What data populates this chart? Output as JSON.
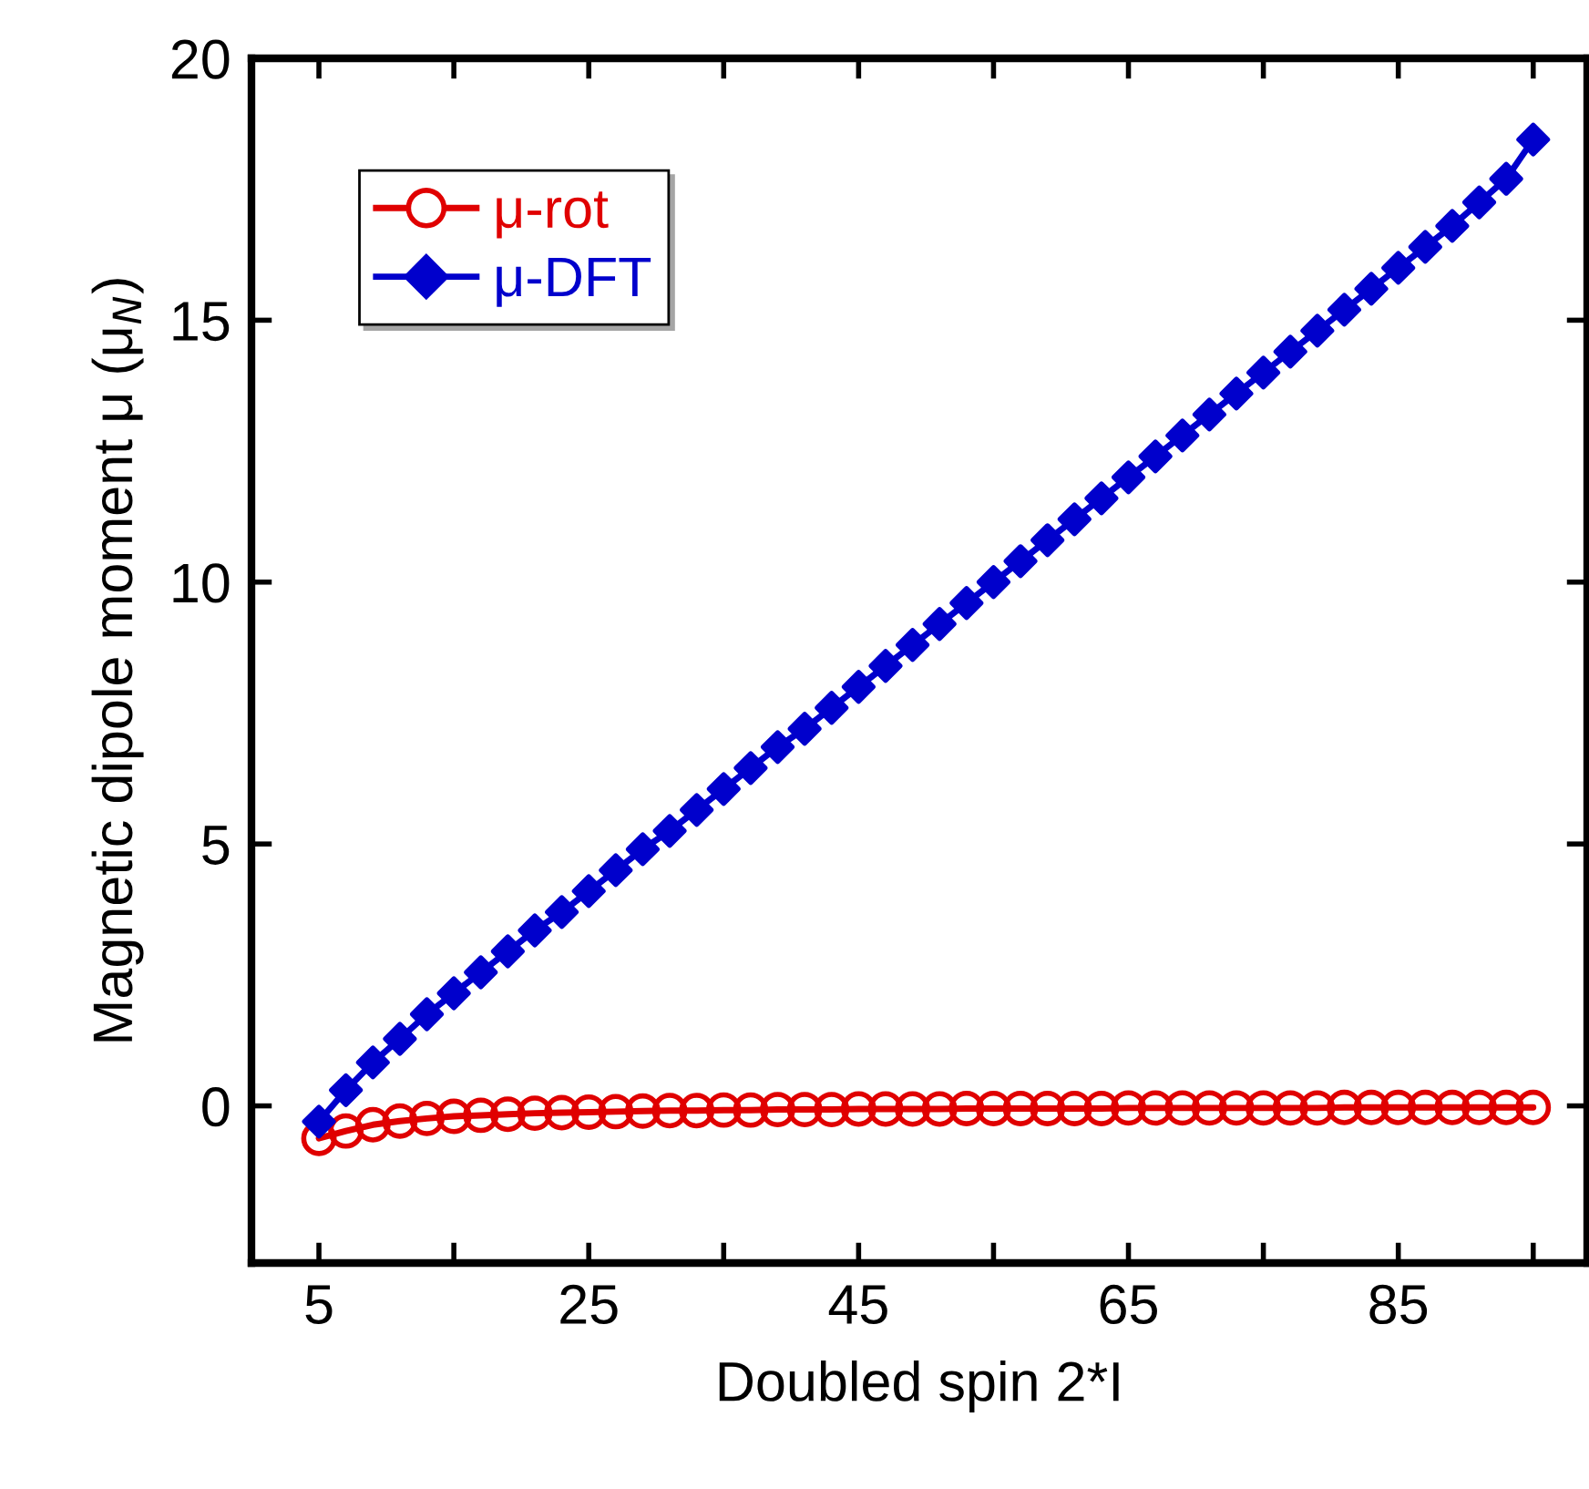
{
  "chart_data": {
    "type": "line",
    "xlabel": "Doubled spin 2*I",
    "ylabel": "Magnetic dipole moment μ (μ$_{N}$)",
    "x": [
      5,
      7,
      9,
      11,
      13,
      15,
      17,
      19,
      21,
      23,
      25,
      27,
      29,
      31,
      33,
      35,
      37,
      39,
      41,
      43,
      45,
      47,
      49,
      51,
      53,
      55,
      57,
      59,
      61,
      63,
      65,
      67,
      69,
      71,
      73,
      75,
      77,
      79,
      81,
      83,
      85,
      87,
      89,
      91,
      93,
      95
    ],
    "series": [
      {
        "name": "μ-rot",
        "color": "#e00000",
        "marker": "circle",
        "values": [
          -0.62,
          -0.48,
          -0.36,
          -0.29,
          -0.24,
          -0.2,
          -0.18,
          -0.16,
          -0.14,
          -0.13,
          -0.12,
          -0.11,
          -0.1,
          -0.09,
          -0.09,
          -0.08,
          -0.08,
          -0.07,
          -0.07,
          -0.07,
          -0.06,
          -0.06,
          -0.06,
          -0.06,
          -0.05,
          -0.05,
          -0.05,
          -0.05,
          -0.05,
          -0.05,
          -0.04,
          -0.04,
          -0.04,
          -0.04,
          -0.04,
          -0.04,
          -0.04,
          -0.04,
          -0.03,
          -0.03,
          -0.03,
          -0.03,
          -0.03,
          -0.03,
          -0.03,
          -0.03
        ]
      },
      {
        "name": "μ-DFT",
        "color": "#0000cc",
        "marker": "diamond",
        "values": [
          -0.3,
          0.3,
          0.83,
          1.28,
          1.75,
          2.15,
          2.55,
          2.95,
          3.35,
          3.7,
          4.1,
          4.5,
          4.9,
          5.25,
          5.65,
          6.05,
          6.45,
          6.85,
          7.2,
          7.6,
          8.0,
          8.4,
          8.8,
          9.2,
          9.6,
          10.0,
          10.4,
          10.8,
          11.2,
          11.6,
          12.0,
          12.4,
          12.8,
          13.2,
          13.6,
          14.0,
          14.4,
          14.8,
          15.2,
          15.6,
          16.0,
          16.4,
          16.8,
          17.25,
          17.7,
          18.45
        ]
      }
    ],
    "xlim": [
      0,
      99
    ],
    "xticks": [
      5,
      {
        "value": 15,
        "label": null
      },
      25,
      {
        "value": 35,
        "label": null
      },
      45,
      {
        "value": 55,
        "label": null
      },
      65,
      {
        "value": 75,
        "label": null
      },
      85,
      {
        "value": 95,
        "label": null
      }
    ],
    "ylim": [
      -3,
      20
    ],
    "yticks": [
      0,
      5,
      10,
      15,
      20
    ],
    "legend": "top left",
    "grid": false,
    "line_style": "solid"
  }
}
